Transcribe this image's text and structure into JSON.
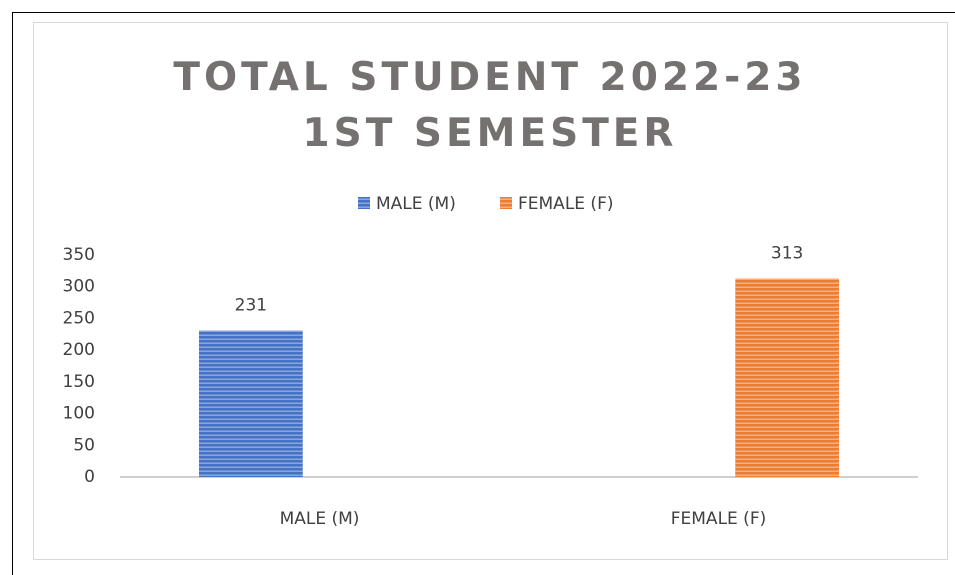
{
  "chart_data": {
    "type": "bar",
    "title": "TOTAL STUDENT 2022-23 1ST SEMESTER",
    "categories": [
      "MALE (M)",
      "FEMALE (F)"
    ],
    "series": [
      {
        "name": "MALE (M)",
        "color": "#4472c4",
        "values": [
          231,
          null
        ]
      },
      {
        "name": "FEMALE (F)",
        "color": "#ed7d31",
        "values": [
          null,
          313
        ]
      }
    ],
    "ylim": [
      0,
      350
    ],
    "yticks": [
      0,
      50,
      100,
      150,
      200,
      250,
      300,
      350
    ],
    "grid": false,
    "legend": "top"
  }
}
